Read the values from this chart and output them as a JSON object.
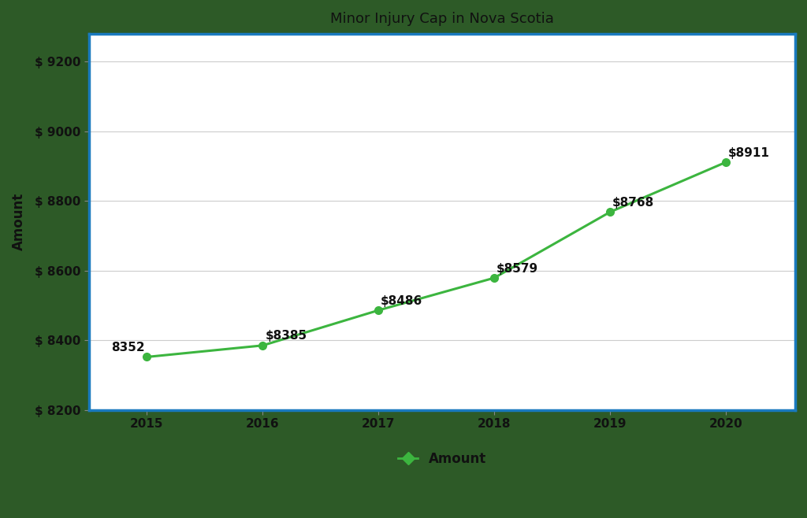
{
  "title": "Minor Injury Cap in Nova Scotia",
  "years": [
    2015,
    2016,
    2017,
    2018,
    2019,
    2020
  ],
  "values": [
    8352,
    8385,
    8486,
    8579,
    8768,
    8911
  ],
  "labels": [
    "8352",
    "$8385",
    "$8486",
    "$8579",
    "$8768",
    "$8911"
  ],
  "line_color": "#3cb53f",
  "marker_color": "#3cb53f",
  "ylabel": "Amount",
  "legend_label": "Amount",
  "ylim": [
    8200,
    9280
  ],
  "yticks": [
    8200,
    8400,
    8600,
    8800,
    9000,
    9200
  ],
  "ytick_labels": [
    "$ 8200",
    "$ 8400",
    "$ 8600",
    "$ 8800",
    "$ 9000",
    "$ 9200"
  ],
  "background_color": "#2d5a27",
  "plot_bg_color": "#ffffff",
  "border_color": "#1a7abf",
  "grid_color": "#cccccc",
  "title_fontsize": 13,
  "label_fontsize": 10,
  "tick_fontsize": 11,
  "annot_ha": [
    "right",
    "left",
    "left",
    "left",
    "left",
    "left"
  ],
  "annot_va": [
    "top",
    "bottom",
    "bottom",
    "bottom",
    "bottom",
    "bottom"
  ],
  "annot_dx": [
    -0.02,
    0.02,
    0.02,
    0.02,
    0.02,
    0.02
  ],
  "annot_dy": [
    10,
    10,
    10,
    10,
    10,
    10
  ]
}
